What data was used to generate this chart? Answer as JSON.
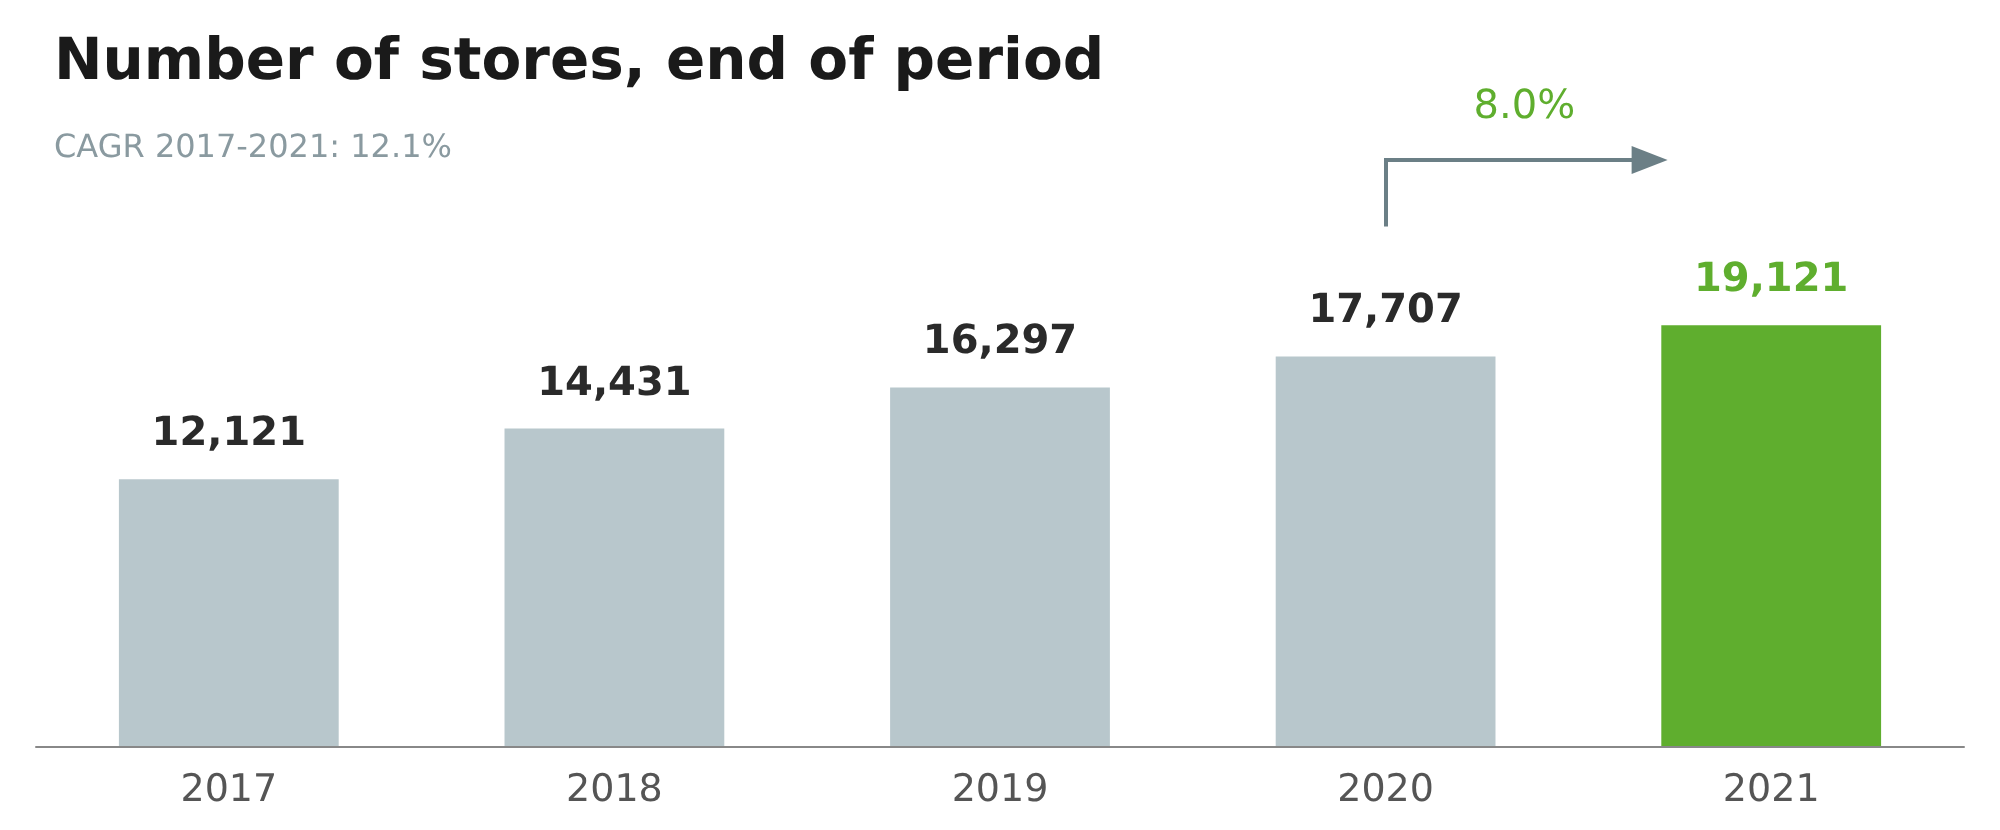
{
  "chart_data": {
    "type": "bar",
    "title": "Number of stores, end of period",
    "subtitle": "CAGR 2017-2021: 12.1%",
    "categories": [
      "2017",
      "2018",
      "2019",
      "2020",
      "2021"
    ],
    "values": [
      12121,
      14431,
      16297,
      17707,
      19121
    ],
    "colors": [
      "#b8c7cc",
      "#b8c7cc",
      "#b8c7cc",
      "#b8c7cc",
      "#5fae2e"
    ],
    "annotations": [
      "8.0%"
    ],
    "value_labels": [
      "12,121",
      "14,431",
      "16,297",
      "17,707",
      "19,121"
    ]
  }
}
